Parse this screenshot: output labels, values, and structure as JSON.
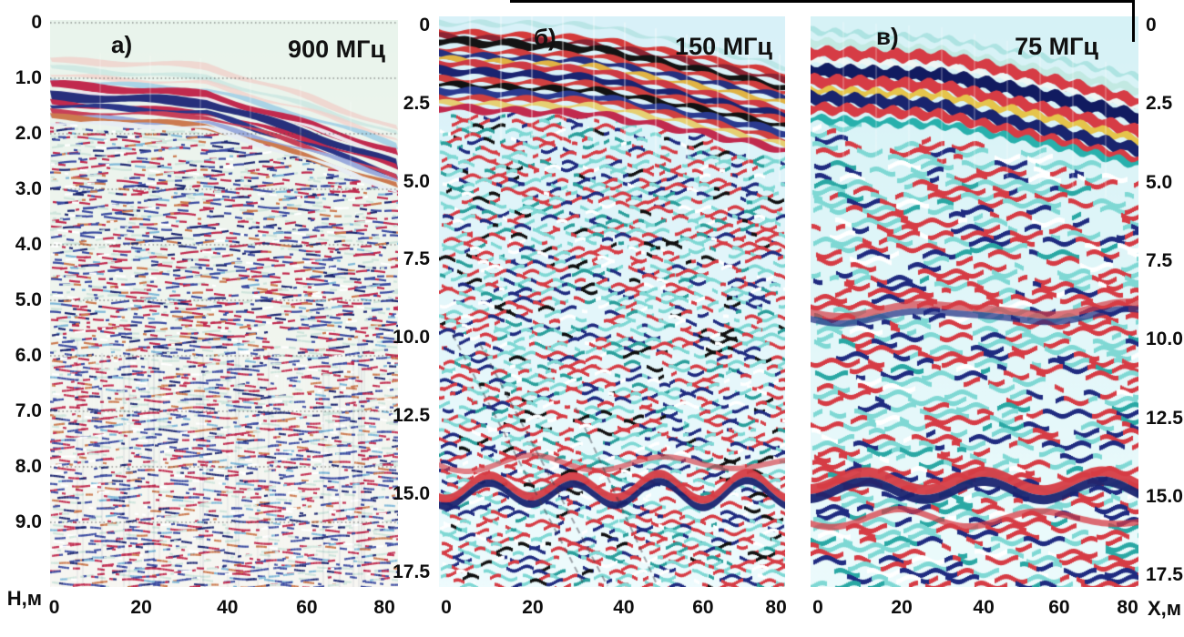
{
  "axis_labels": {
    "depth": "Н,м",
    "distance": "Х,м"
  },
  "panels": [
    {
      "key": "a",
      "label": "а)",
      "freq": "900 МГц",
      "depth_ticks": [
        "0",
        "1.0",
        "2.0",
        "3.0",
        "4.0",
        "5.0",
        "6.0",
        "7.0",
        "8.0",
        "9.0"
      ],
      "x_ticks": [
        "0",
        "20",
        "40",
        "60",
        "80"
      ]
    },
    {
      "key": "b",
      "label": "б)",
      "freq": "150 МГц",
      "depth_ticks": [
        "0",
        "2.5",
        "5.0",
        "7.5",
        "10.0",
        "12.5",
        "15.0",
        "17.5"
      ],
      "x_ticks": [
        "0",
        "20",
        "40",
        "60",
        "80"
      ]
    },
    {
      "key": "v",
      "label": "в)",
      "freq": "75 МГц",
      "depth_ticks": [
        "0",
        "2.5",
        "5.0",
        "7.5",
        "10.0",
        "12.5",
        "15.0",
        "17.5"
      ],
      "x_ticks": [
        "0",
        "20",
        "40",
        "60",
        "80"
      ]
    }
  ],
  "palette": {
    "red": "#d63c45",
    "crimson": "#c12a4e",
    "navy": "#1f2b80",
    "deep_navy": "#1a2470",
    "cyan": "#7fd8d4",
    "teal": "#2aa8a4",
    "black_band": "#141414",
    "yellow": "#e0b344",
    "orange": "#cc7a4f",
    "mint_bg": "#e9f4ec",
    "cyan_bg_b": "#d8f1f8",
    "cyan_bg_v": "#d6f2f6",
    "white": "#ffffff",
    "tick_color": "#0d0d0d"
  },
  "chart_data": [
    {
      "type": "heatmap",
      "panel_label": "а)",
      "title": "900 МГц",
      "xlabel": "Х,м",
      "ylabel": "Н,м",
      "x_ticks": [
        0,
        20,
        40,
        60,
        80
      ],
      "x_range_m": [
        0,
        84
      ],
      "depth_ticks_m": [
        0,
        1.0,
        2.0,
        3.0,
        4.0,
        5.0,
        6.0,
        7.0,
        8.0,
        9.0
      ],
      "depth_range_m": [
        0,
        10.2
      ],
      "gridlines": "dotted horizontal line at every 1 m depth tick",
      "palette_character": "white background with fine red/blue speckle; mint-green transparent zone above the surface reflector",
      "features": [
        "layered red/navy surface-reflector package at ~1.0 m depth on the left (x=0–40 m)",
        "reflector package dips to ~2.2 m depth toward x=80 m",
        "fine chaotic diffraction texture below ~2.5 m",
        "texture becomes vertically streaked below ~6 m"
      ]
    },
    {
      "type": "heatmap",
      "panel_label": "б)",
      "title": "150 МГц",
      "xlabel": "Х,м",
      "ylabel": "",
      "x_ticks": [
        0,
        20,
        40,
        60,
        80
      ],
      "x_range_m": [
        0,
        84
      ],
      "depth_ticks_m": [
        0,
        2.5,
        5.0,
        7.5,
        10.0,
        12.5,
        15.0,
        17.5
      ],
      "depth_range_m": [
        0,
        18.4
      ],
      "gridlines": "none",
      "palette_character": "light-cyan background; red, navy, black and yellow banding; cyan speckle",
      "features": [
        "strong layered reflector package (red/black/navy/yellow) from ~0.5 m to ~3.5 m, dipping right beyond x≈45 m",
        "thin vertical trace-segment seams across the section",
        "chaotic medium-scale reflections between ~3.5 m and ~12.5 m",
        "continuous undulating red/navy reflector at ~15 m",
        "faint dark diagonal linear noise in the lower-left corner"
      ]
    },
    {
      "type": "heatmap",
      "panel_label": "в)",
      "title": "75 МГц",
      "xlabel": "Х,м",
      "ylabel": "",
      "x_ticks": [
        0,
        20,
        40,
        60,
        80
      ],
      "x_range_m": [
        0,
        84
      ],
      "depth_ticks_m": [
        0,
        2.5,
        5.0,
        7.5,
        10.0,
        12.5,
        15.0,
        17.5
      ],
      "depth_range_m": [
        0,
        18.4
      ],
      "gridlines": "none",
      "palette_character": "light-cyan background; coarse red/navy/cyan blotches with yellow streaks in the upper package",
      "features": [
        "coarse layered surface package (cyan/red/navy/yellow) from ~0.5 m to ~4 m, dipping gently to the right",
        "coarse horizontally-banded blotchy reflections through the middle of the section",
        "red/navy banded reflector near ~10 m",
        "strong wavy red/navy reflector at ~15 m"
      ]
    }
  ]
}
